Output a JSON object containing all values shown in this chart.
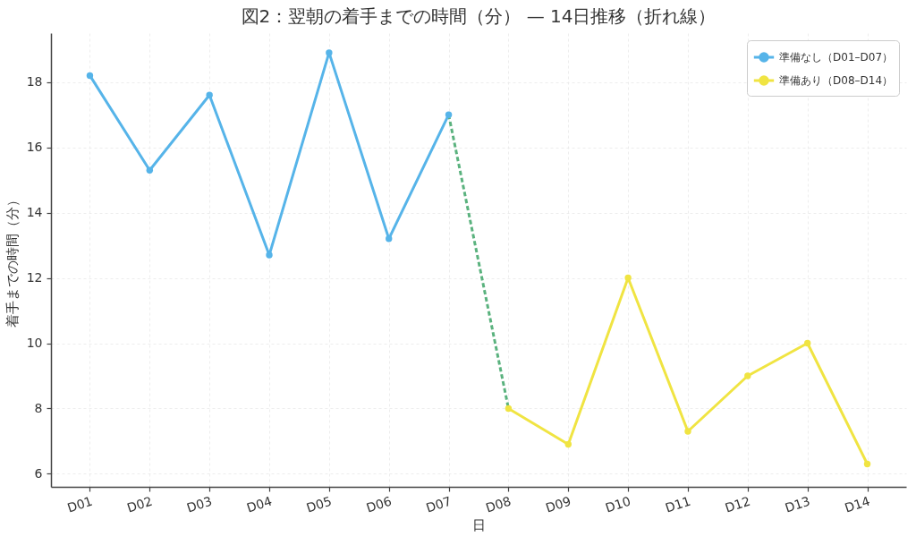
{
  "chart_data": {
    "type": "line",
    "title": "図2：翌朝の着手までの時間（分） — 14日推移（折れ線）",
    "xlabel": "日",
    "ylabel": "着手までの時間（分）",
    "categories": [
      "D01",
      "D02",
      "D03",
      "D04",
      "D05",
      "D06",
      "D07",
      "D08",
      "D09",
      "D10",
      "D11",
      "D12",
      "D13",
      "D14"
    ],
    "series": [
      {
        "color": "#5ab27e",
        "line_style": "dashed",
        "marker": "none",
        "values": [
          null,
          null,
          null,
          null,
          null,
          null,
          17.0,
          8.0,
          null,
          null,
          null,
          null,
          null,
          null
        ]
      },
      {
        "name": "準備なし（D01–D07）",
        "color": "#56b4e9",
        "values": [
          18.2,
          15.3,
          17.6,
          12.7,
          18.9,
          13.2,
          17.0,
          null,
          null,
          null,
          null,
          null,
          null,
          null
        ]
      },
      {
        "name": "準備あり（D08–D14）",
        "color": "#f0e442",
        "values": [
          null,
          null,
          null,
          null,
          null,
          null,
          null,
          8.0,
          6.9,
          12.0,
          7.3,
          9.0,
          10.0,
          6.3
        ]
      }
    ],
    "ylim": [
      5.6,
      19.5
    ],
    "yticks": [
      6,
      8,
      10,
      12,
      14,
      16,
      18
    ],
    "grid": true,
    "legend": "top right",
    "marker": "circle",
    "line_style": "solid"
  }
}
